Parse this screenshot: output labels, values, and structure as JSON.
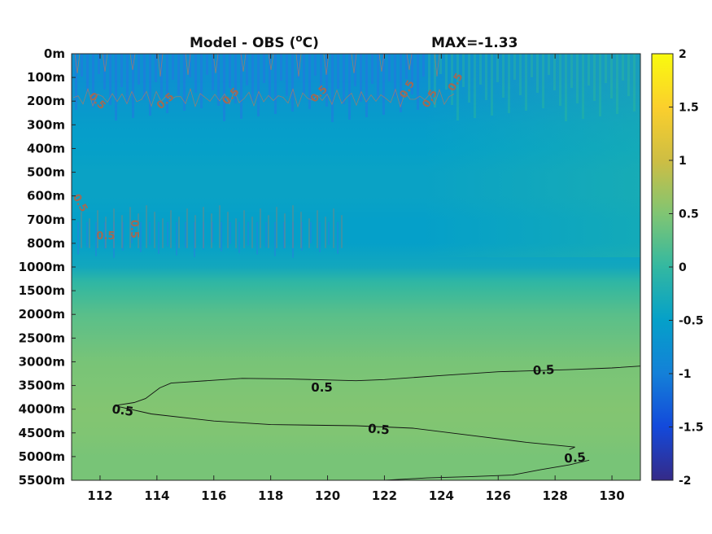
{
  "chart_data": {
    "type": "heatmap",
    "title": "Model - OBS (",
    "title_unit_sup": "o",
    "title_unit_end": "C)",
    "max_label": "MAX=-1.33",
    "xlabel": "",
    "ylabel": "",
    "xlim": [
      111,
      131
    ],
    "x_ticks": [
      112,
      114,
      116,
      118,
      120,
      122,
      124,
      126,
      128,
      130
    ],
    "x_tick_labels": [
      "112",
      "114",
      "116",
      "118",
      "120",
      "122",
      "124",
      "126",
      "128",
      "130"
    ],
    "y_tick_labels": [
      "0m",
      "100m",
      "200m",
      "300m",
      "400m",
      "500m",
      "600m",
      "700m",
      "800m",
      "1000m",
      "1500m",
      "2000m",
      "2500m",
      "3000m",
      "3500m",
      "4000m",
      "4500m",
      "5000m",
      "5500m"
    ],
    "colorbar": {
      "colormap": "parula",
      "range": [
        -2,
        2
      ],
      "ticks": [
        -2,
        -1.5,
        -1,
        -0.5,
        0,
        0.5,
        1,
        1.5,
        2
      ],
      "tick_labels": [
        "-2",
        "-1.5",
        "-1",
        "-0.5",
        "0",
        "0.5",
        "1",
        "1.5",
        "2"
      ]
    },
    "field_profile": [
      {
        "level": 0,
        "value": -0.75
      },
      {
        "level": 1,
        "value": -0.75
      },
      {
        "level": 2,
        "value": -0.65
      },
      {
        "level": 3,
        "value": -0.55
      },
      {
        "level": 4,
        "value": -0.5
      },
      {
        "level": 5,
        "value": -0.45
      },
      {
        "level": 6,
        "value": -0.45
      },
      {
        "level": 7,
        "value": -0.5
      },
      {
        "level": 8,
        "value": -0.5
      },
      {
        "level": 9,
        "value": -0.35
      },
      {
        "level": 9.6,
        "value": -0.05
      },
      {
        "level": 10,
        "value": 0.05
      },
      {
        "level": 11,
        "value": 0.25
      },
      {
        "level": 12,
        "value": 0.35
      },
      {
        "level": 13,
        "value": 0.45
      },
      {
        "level": 14,
        "value": 0.48
      },
      {
        "level": 15,
        "value": 0.52
      },
      {
        "level": 16,
        "value": 0.5
      },
      {
        "level": 17,
        "value": 0.45
      },
      {
        "level": 18,
        "value": 0.45
      }
    ],
    "contour_level": 0.5,
    "contour_labels": [
      {
        "text": "0.5",
        "x": 112.8,
        "level": 15.05,
        "angle": 8
      },
      {
        "text": "0.5",
        "x": 119.8,
        "level": 14.08,
        "angle": 0
      },
      {
        "text": "0.5",
        "x": 127.6,
        "level": 13.35,
        "angle": -3
      },
      {
        "text": "0.5",
        "x": 121.8,
        "level": 15.85,
        "angle": 5
      },
      {
        "text": "0.5",
        "x": 128.7,
        "level": 17.05,
        "angle": -5
      }
    ],
    "grey_contour_labels": [
      {
        "text": "0.5",
        "x": 111.9,
        "level": 2.0,
        "angle": 45
      },
      {
        "text": "0.5",
        "x": 114.3,
        "level": 2.0,
        "angle": -40
      },
      {
        "text": "0.5",
        "x": 116.6,
        "level": 1.8,
        "angle": -45
      },
      {
        "text": "0.5",
        "x": 119.7,
        "level": 1.7,
        "angle": -45
      },
      {
        "text": "0.5",
        "x": 122.8,
        "level": 1.5,
        "angle": -60
      },
      {
        "text": "0.5",
        "x": 123.6,
        "level": 1.9,
        "angle": -60
      },
      {
        "text": "0.5",
        "x": 124.5,
        "level": 1.2,
        "angle": -60
      },
      {
        "text": "0.5",
        "x": 111.3,
        "level": 6.3,
        "angle": 60
      },
      {
        "text": "0.5",
        "x": 112.2,
        "level": 7.7,
        "angle": 0
      },
      {
        "text": "0.5",
        "x": 113.2,
        "level": 7.4,
        "angle": 90
      }
    ]
  }
}
